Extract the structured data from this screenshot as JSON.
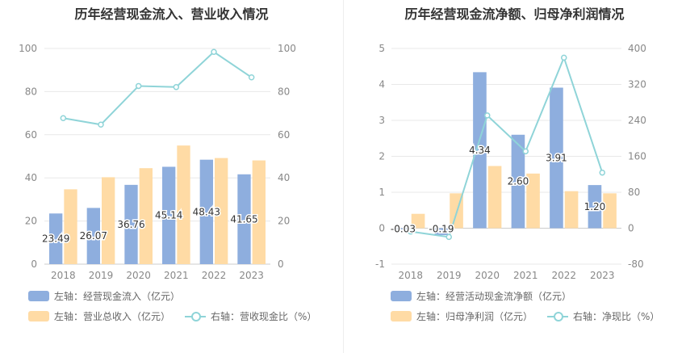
{
  "chart_data": [
    {
      "type": "bar+line",
      "title": "历年经营现金流入、营业收入情况",
      "categories": [
        "2018",
        "2019",
        "2020",
        "2021",
        "2022",
        "2023"
      ],
      "left_axis": {
        "ylim": [
          0,
          100
        ],
        "ticks": [
          0,
          20,
          40,
          60,
          80,
          100
        ]
      },
      "right_axis": {
        "ylim": [
          0,
          100
        ],
        "ticks": [
          0,
          20,
          40,
          60,
          80,
          100
        ]
      },
      "series": [
        {
          "name": "左轴：经营现金流入（亿元）",
          "kind": "bar",
          "axis": "left",
          "color": "#8eaede",
          "values": [
            23.49,
            26.07,
            36.76,
            45.14,
            48.43,
            41.65
          ],
          "labels": [
            "23.49",
            "26.07",
            "36.76",
            "45.14",
            "48.43",
            "41.65"
          ]
        },
        {
          "name": "左轴：营业总收入（亿元）",
          "kind": "bar",
          "axis": "left",
          "color": "#ffdba5",
          "values": [
            34.7,
            40.3,
            44.5,
            55.0,
            49.2,
            48.1
          ]
        },
        {
          "name": "右轴：营收现金比（%）",
          "kind": "line",
          "axis": "right",
          "color": "#8fd4d8",
          "values": [
            67.7,
            64.7,
            82.6,
            82.1,
            98.4,
            86.6
          ]
        }
      ],
      "legend": {
        "position": "bottom"
      }
    },
    {
      "type": "bar+line",
      "title": "历年经营现金流净额、归母净利润情况",
      "categories": [
        "2018",
        "2019",
        "2020",
        "2021",
        "2022",
        "2023"
      ],
      "left_axis": {
        "ylim": [
          -1,
          5
        ],
        "ticks": [
          -1,
          0,
          1,
          2,
          3,
          4,
          5
        ]
      },
      "right_axis": {
        "ylim": [
          -80,
          400
        ],
        "ticks": [
          -80,
          0,
          80,
          160,
          240,
          320,
          400
        ]
      },
      "series": [
        {
          "name": "左轴：经营活动现金流净额（亿元）",
          "kind": "bar",
          "axis": "left",
          "color": "#8eaede",
          "values": [
            -0.03,
            -0.19,
            4.34,
            2.6,
            3.91,
            1.2
          ],
          "labels": [
            "-0.03",
            "-0.19",
            "4.34",
            "2.60",
            "3.91",
            "1.20"
          ]
        },
        {
          "name": "左轴：归母净利润（亿元）",
          "kind": "bar",
          "axis": "left",
          "color": "#ffdba5",
          "values": [
            0.4,
            0.97,
            1.73,
            1.52,
            1.03,
            0.97
          ]
        },
        {
          "name": "右轴：净现比（%）",
          "kind": "line",
          "axis": "right",
          "color": "#8fd4d8",
          "values": [
            -7.5,
            -19.6,
            250.9,
            171.1,
            379.6,
            123.7
          ]
        }
      ],
      "legend": {
        "position": "bottom"
      }
    }
  ]
}
